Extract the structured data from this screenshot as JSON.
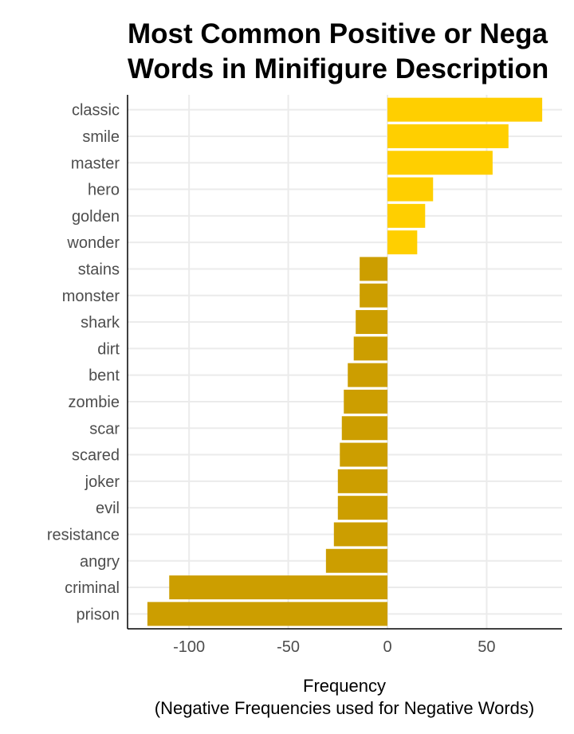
{
  "chart_data": {
    "type": "bar",
    "orientation": "horizontal",
    "title_lines": [
      "Most Common Positive or Nega",
      "Words in Minifigure Description"
    ],
    "xlabel_lines": [
      "Frequency",
      "(Negative Frequencies used for Negative Words)"
    ],
    "ylabel": "",
    "categories": [
      "classic",
      "smile",
      "master",
      "hero",
      "golden",
      "wonder",
      "stains",
      "monster",
      "shark",
      "dirt",
      "bent",
      "zombie",
      "scar",
      "scared",
      "joker",
      "evil",
      "resistance",
      "angry",
      "criminal",
      "prison"
    ],
    "values": [
      78,
      61,
      53,
      23,
      19,
      15,
      -14,
      -14,
      -16,
      -17,
      -20,
      -22,
      -23,
      -24,
      -25,
      -25,
      -27,
      -31,
      -110,
      -121
    ],
    "xlim": [
      -131,
      88
    ],
    "xticks": [
      -100,
      -50,
      0,
      50
    ],
    "xtick_labels": [
      "-100",
      "-50",
      "0",
      "50"
    ],
    "grid": true,
    "legend": "none",
    "colors": {
      "positive": "#ffcf00",
      "negative": "#cc9e00",
      "grid": "#ebebeb",
      "axis": "#000000"
    }
  }
}
